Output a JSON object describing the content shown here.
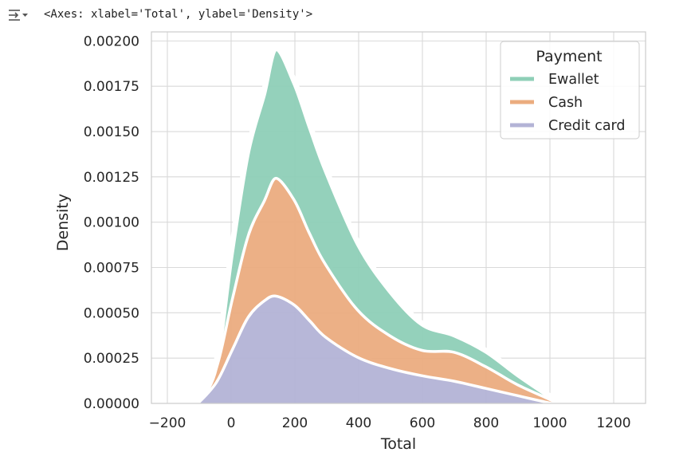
{
  "output": {
    "icon": "output-collapse-icon",
    "repr_text": "<Axes: xlabel='Total', ylabel='Density'>"
  },
  "chart_data": {
    "type": "area",
    "stacked": true,
    "xlabel": "Total",
    "ylabel": "Density",
    "xlim": [
      -250,
      1300
    ],
    "ylim": [
      0,
      0.00205
    ],
    "x_ticks": [
      -200,
      0,
      200,
      400,
      600,
      800,
      1000,
      1200
    ],
    "x_tick_labels": [
      "−200",
      "0",
      "200",
      "400",
      "600",
      "800",
      "1000",
      "1200"
    ],
    "y_ticks": [
      0,
      0.00025,
      0.0005,
      0.00075,
      0.001,
      0.00125,
      0.0015,
      0.00175,
      0.002
    ],
    "y_tick_labels": [
      "0.00000",
      "0.00025",
      "0.00050",
      "0.00075",
      "0.00100",
      "0.00125",
      "0.00150",
      "0.00175",
      "0.00200"
    ],
    "grid": true,
    "legend": {
      "title": "Payment",
      "placement": "top-right"
    },
    "x": [
      -110,
      -50,
      0,
      50,
      100,
      140,
      200,
      250,
      300,
      400,
      500,
      600,
      700,
      800,
      900,
      1000,
      1030
    ],
    "series": [
      {
        "name": "Credit card",
        "color": "#b3b3d6",
        "values": [
          0.0,
          0.00012,
          0.0003,
          0.00048,
          0.00057,
          0.0006,
          0.00055,
          0.00046,
          0.00037,
          0.00026,
          0.0002,
          0.00016,
          0.00013,
          9e-05,
          5e-05,
          1e-05,
          0.0
        ]
      },
      {
        "name": "Cash",
        "color": "#ebac7f",
        "values": [
          0.0,
          8e-05,
          0.00028,
          0.00045,
          0.00055,
          0.00065,
          0.00058,
          0.00048,
          0.0004,
          0.00026,
          0.00018,
          0.00014,
          0.00016,
          0.00012,
          6e-05,
          2e-05,
          0.0
        ]
      },
      {
        "name": "Ewallet",
        "color": "#8ecfb7",
        "values": [
          0.0,
          0.0,
          0.00025,
          0.00045,
          0.00058,
          0.00071,
          0.00064,
          0.00058,
          0.00051,
          0.00036,
          0.00024,
          0.00014,
          9e-05,
          8e-05,
          5e-05,
          1e-05,
          0.0
        ]
      }
    ]
  }
}
